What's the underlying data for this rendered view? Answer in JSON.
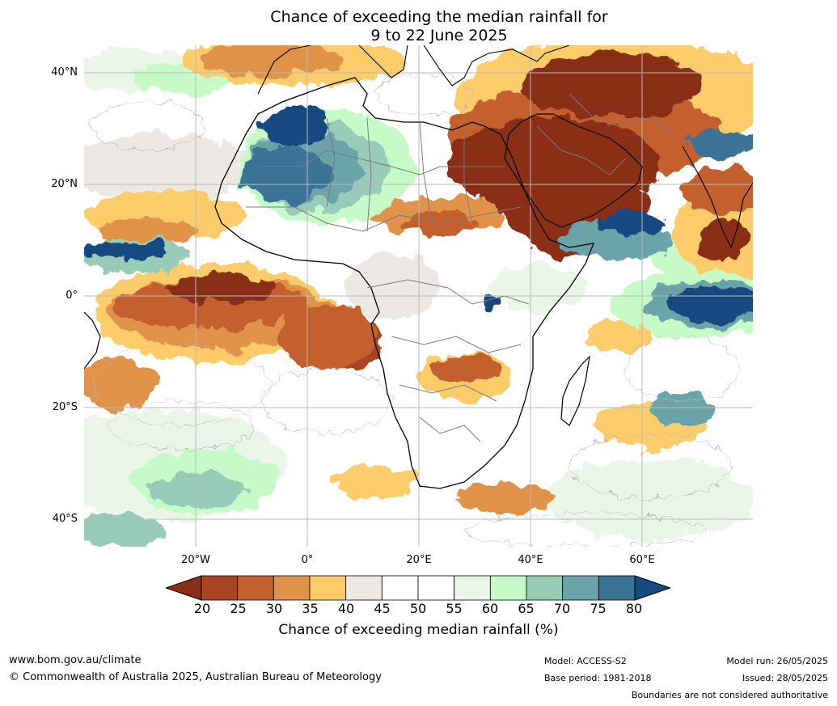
{
  "title": {
    "line1": "Chance of exceeding the median rainfall for",
    "line2": "9 to 22 June 2025"
  },
  "map": {
    "latitude_labels": [
      "40°N",
      "20°N",
      "0°",
      "20°S",
      "40°S"
    ],
    "longitude_labels": [
      "20°W",
      "0°",
      "20°E",
      "40°E",
      "60°E"
    ],
    "colors": {
      "c20": "#8a2f17",
      "c25": "#a94523",
      "c30": "#c4602e",
      "c35": "#e0924a",
      "c40": "#fccb6a",
      "c45": "#ece9e5",
      "c50": "#ffffff",
      "c55": "#ffffff",
      "c60": "#e9f6e8",
      "c65": "#c6fbc8",
      "c70": "#99ccb8",
      "c75": "#6aa3a8",
      "c80": "#3a7396",
      "c85": "#154a80",
      "coast": "#000000",
      "border": "#7b7b7b"
    }
  },
  "colorbar": {
    "ticks": [
      "20",
      "25",
      "30",
      "35",
      "40",
      "45",
      "50",
      "55",
      "60",
      "65",
      "70",
      "75",
      "80"
    ],
    "label": "Chance of exceeding median rainfall (%)",
    "colors": [
      "#8a2f17",
      "#a94523",
      "#c4602e",
      "#e0924a",
      "#fccb6a",
      "#ece9e5",
      "#ffffff",
      "#ffffff",
      "#e9f6e8",
      "#c6fbc8",
      "#99ccb8",
      "#6aa3a8",
      "#3a7396",
      "#154a80"
    ]
  },
  "footer": {
    "website": "www.bom.gov.au/climate",
    "copyright": "© Commonwealth of Australia 2025, Australian Bureau of Meteorology",
    "model": "Model: ACCESS-S2",
    "base_period": "Base period: 1981-2018",
    "model_run": "Model run: 26/05/2025",
    "issued": "Issued: 28/05/2025",
    "disclaimer": "Boundaries are not considered authoritative"
  }
}
